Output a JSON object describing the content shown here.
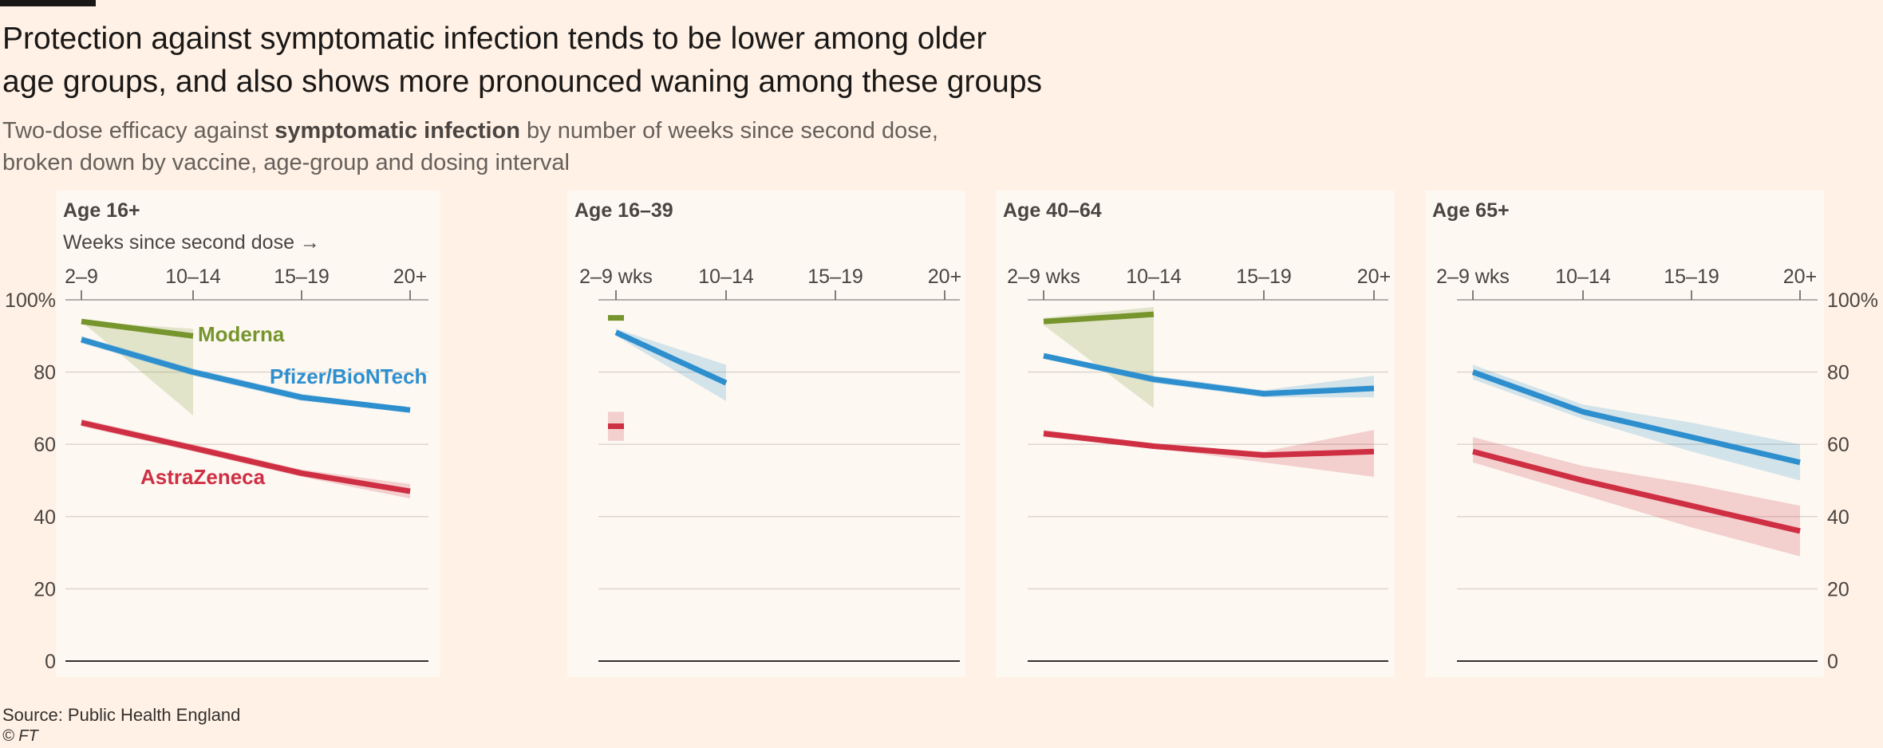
{
  "header": {
    "title_line1": "Protection against symptomatic infection tends to be lower among older",
    "title_line2": "age groups, and also shows more pronounced waning among these groups",
    "subtitle_pre": "Two-dose efficacy against ",
    "subtitle_bold": "symptomatic infection",
    "subtitle_post": " by number of weeks since second dose,",
    "subtitle_line2": "broken down by vaccine, age-group and dosing interval"
  },
  "footer": {
    "source": "Source: Public Health England",
    "copyright": "© FT"
  },
  "colors": {
    "background": "#fff1e5",
    "panel": "#fdf8f2",
    "Moderna": "#76952d",
    "Pfizer/BioNTech": "#2e8fcf",
    "AstraZeneca": "#cf2f43"
  },
  "chart_data": [
    {
      "type": "line",
      "title": "Age 16+",
      "x_note": "Weeks since second dose →",
      "categories": [
        "2–9",
        "10–14",
        "15–19",
        "20+"
      ],
      "ylim": [
        0,
        100
      ],
      "yticks": [
        "100%",
        "80",
        "60",
        "40",
        "20",
        "0"
      ],
      "y_axis_side": "left",
      "grid": true,
      "series": [
        {
          "name": "Moderna",
          "label": "Moderna",
          "values": [
            94,
            90,
            null,
            null
          ],
          "ci_low": [
            94,
            68,
            null,
            null
          ],
          "ci_high": [
            94,
            92,
            null,
            null
          ]
        },
        {
          "name": "Pfizer/BioNTech",
          "label": "Pfizer/BioNTech",
          "values": [
            89,
            80,
            73,
            69.5
          ],
          "ci_low": [
            88,
            79,
            72,
            69
          ],
          "ci_high": [
            90,
            81,
            74,
            70
          ]
        },
        {
          "name": "AstraZeneca",
          "label": "AstraZeneca",
          "values": [
            66,
            59,
            52,
            47
          ],
          "ci_low": [
            65,
            58,
            51,
            45
          ],
          "ci_high": [
            67,
            60,
            53,
            49
          ]
        }
      ]
    },
    {
      "type": "line",
      "title": "Age 16–39",
      "x_note": "",
      "categories": [
        "2–9 wks",
        "10–14",
        "15–19",
        "20+"
      ],
      "ylim": [
        0,
        100
      ],
      "yticks": [],
      "y_axis_side": "none",
      "grid": true,
      "series": [
        {
          "name": "Moderna",
          "label": "",
          "values": [
            95,
            null,
            null,
            null
          ],
          "ci_low": [
            null,
            null,
            null,
            null
          ],
          "ci_high": [
            null,
            null,
            null,
            null
          ]
        },
        {
          "name": "Pfizer/BioNTech",
          "label": "",
          "values": [
            91,
            77,
            null,
            null
          ],
          "ci_low": [
            90,
            72,
            null,
            null
          ],
          "ci_high": [
            92,
            82,
            null,
            null
          ]
        },
        {
          "name": "AstraZeneca",
          "label": "",
          "values": [
            65,
            null,
            null,
            null
          ],
          "ci_low": [
            61,
            null,
            null,
            null
          ],
          "ci_high": [
            69,
            null,
            null,
            null
          ]
        }
      ]
    },
    {
      "type": "line",
      "title": "Age 40–64",
      "x_note": "",
      "categories": [
        "2–9 wks",
        "10–14",
        "15–19",
        "20+"
      ],
      "ylim": [
        0,
        100
      ],
      "yticks": [],
      "y_axis_side": "none",
      "grid": true,
      "series": [
        {
          "name": "Moderna",
          "label": "",
          "values": [
            94,
            96,
            null,
            null
          ],
          "ci_low": [
            93,
            70,
            null,
            null
          ],
          "ci_high": [
            95,
            98,
            null,
            null
          ]
        },
        {
          "name": "Pfizer/BioNTech",
          "label": "",
          "values": [
            84.5,
            78,
            74,
            75.5
          ],
          "ci_low": [
            84,
            77,
            73,
            73
          ],
          "ci_high": [
            85,
            79,
            75,
            79
          ]
        },
        {
          "name": "AstraZeneca",
          "label": "",
          "values": [
            63,
            59.5,
            57,
            58
          ],
          "ci_low": [
            62,
            59,
            55,
            51
          ],
          "ci_high": [
            64,
            60,
            58,
            64
          ]
        }
      ]
    },
    {
      "type": "line",
      "title": "Age 65+",
      "x_note": "",
      "categories": [
        "2–9 wks",
        "10–14",
        "15–19",
        "20+"
      ],
      "ylim": [
        0,
        100
      ],
      "yticks": [
        "100%",
        "80",
        "60",
        "40",
        "20",
        "0"
      ],
      "y_axis_side": "right",
      "grid": true,
      "series": [
        {
          "name": "Pfizer/BioNTech",
          "label": "",
          "values": [
            80,
            69,
            62,
            55
          ],
          "ci_low": [
            78,
            67,
            58,
            50
          ],
          "ci_high": [
            82,
            71,
            66,
            60
          ]
        },
        {
          "name": "AstraZeneca",
          "label": "",
          "values": [
            58,
            50,
            43,
            36
          ],
          "ci_low": [
            55,
            46,
            37,
            29
          ],
          "ci_high": [
            62,
            54,
            49,
            43
          ]
        }
      ]
    }
  ]
}
